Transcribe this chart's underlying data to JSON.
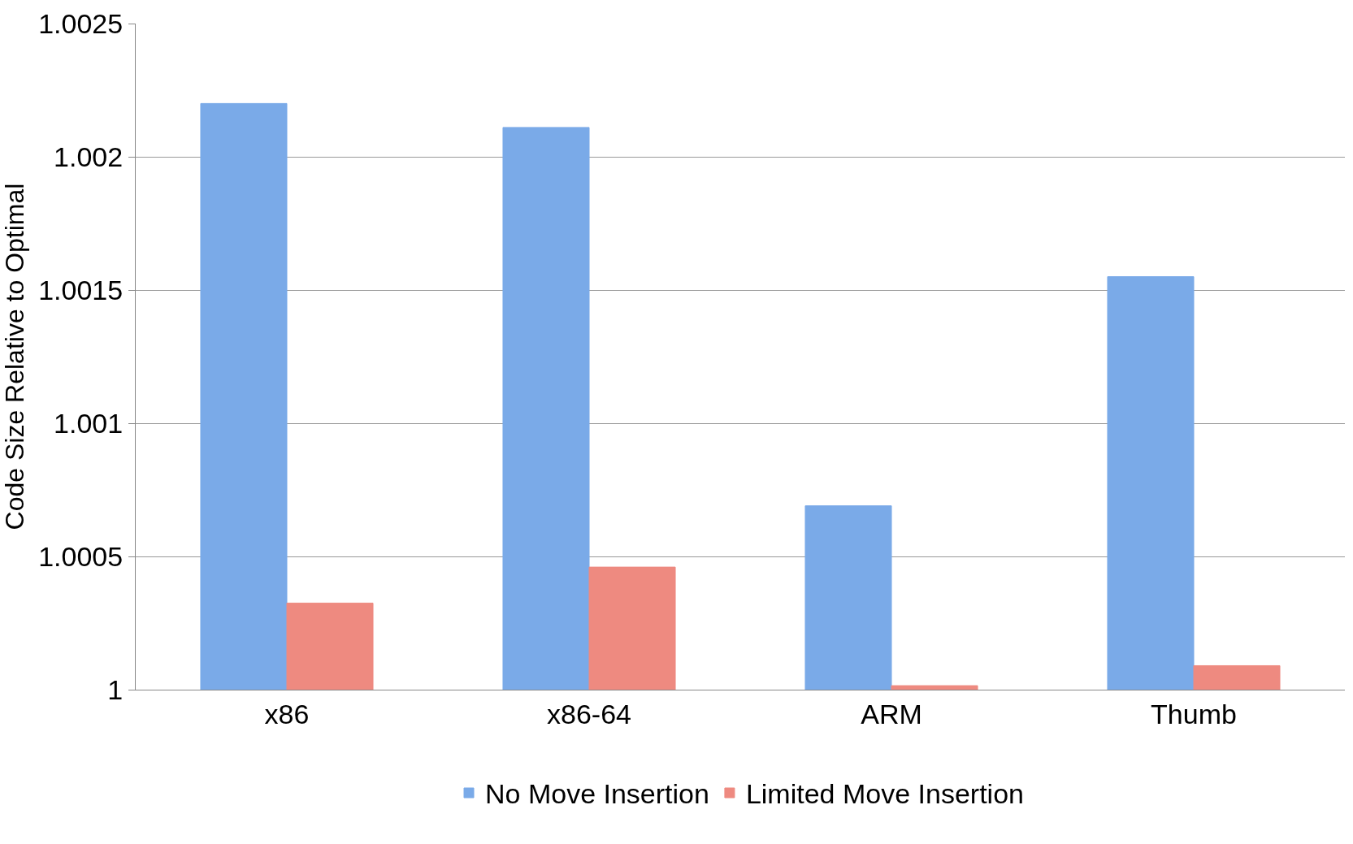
{
  "chart_data": {
    "type": "bar",
    "ylabel": "Code Size Relative to Optimal",
    "categories": [
      "x86",
      "x86-64",
      "ARM",
      "Thumb"
    ],
    "series": [
      {
        "name": "No Move Insertion",
        "color": "#7aaae8",
        "values": [
          1.0022,
          1.00211,
          1.00069,
          1.00155
        ]
      },
      {
        "name": "Limited Move Insertion",
        "color": "#ee8a80",
        "values": [
          1.000325,
          1.00046,
          1.000015,
          1.00009
        ]
      }
    ],
    "ylim": [
      1,
      1.0025
    ],
    "yticks": [
      1,
      1.0005,
      1.001,
      1.0015,
      1.002,
      1.0025
    ],
    "grid": "y",
    "legend": "bottom"
  }
}
